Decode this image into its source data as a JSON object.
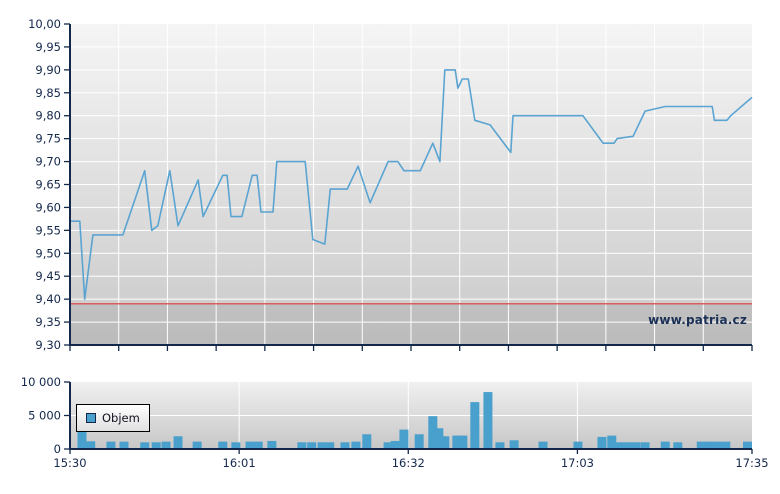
{
  "watermark": {
    "text": "www.patria.cz"
  },
  "legend": {
    "label": "Objem"
  },
  "colors": {
    "axis_navy": "#14284b",
    "price_line": "#5aa4d2",
    "volume_bar": "#4aa0cc",
    "reference_red": "#d95f5f",
    "grid_white": "#ffffff",
    "plot_bg_top": "#f5f5f5",
    "plot_bg_bottom": "#c9c9c9"
  },
  "chart_data": [
    {
      "type": "line",
      "title": "",
      "xlabel": "",
      "ylabel": "",
      "x_unit": "minutes since 15:30",
      "xlim": [
        0,
        125
      ],
      "ylim": [
        9.3,
        10.0
      ],
      "grid": true,
      "minor_x_divisions": 14,
      "yticks": [
        {
          "value": 9.3,
          "label": "9,30"
        },
        {
          "value": 9.35,
          "label": "9,35"
        },
        {
          "value": 9.4,
          "label": "9,40"
        },
        {
          "value": 9.45,
          "label": "9,45"
        },
        {
          "value": 9.5,
          "label": "9,50"
        },
        {
          "value": 9.55,
          "label": "9,55"
        },
        {
          "value": 9.6,
          "label": "9,60"
        },
        {
          "value": 9.65,
          "label": "9,65"
        },
        {
          "value": 9.7,
          "label": "9,70"
        },
        {
          "value": 9.75,
          "label": "9,75"
        },
        {
          "value": 9.8,
          "label": "9,80"
        },
        {
          "value": 9.85,
          "label": "9,85"
        },
        {
          "value": 9.9,
          "label": "9,90"
        },
        {
          "value": 9.95,
          "label": "9,95"
        },
        {
          "value": 10.0,
          "label": "10,00"
        }
      ],
      "xticks": [
        {
          "minute": 0,
          "label": "15:30"
        },
        {
          "minute": 31,
          "label": "16:01"
        },
        {
          "minute": 62,
          "label": "16:32"
        },
        {
          "minute": 93,
          "label": "17:03"
        },
        {
          "minute": 125,
          "label": "17:35"
        }
      ],
      "reference_line": {
        "value": 9.39
      },
      "series": [
        {
          "name": "price",
          "points": [
            [
              0,
              9.57
            ],
            [
              1.8,
              9.57
            ],
            [
              2.7,
              9.4
            ],
            [
              4.2,
              9.54
            ],
            [
              9.7,
              9.54
            ],
            [
              13.7,
              9.68
            ],
            [
              15.0,
              9.55
            ],
            [
              16.1,
              9.56
            ],
            [
              18.3,
              9.68
            ],
            [
              19.8,
              9.56
            ],
            [
              23.5,
              9.66
            ],
            [
              24.4,
              9.58
            ],
            [
              28.0,
              9.67
            ],
            [
              28.8,
              9.67
            ],
            [
              29.5,
              9.58
            ],
            [
              31.5,
              9.58
            ],
            [
              33.4,
              9.67
            ],
            [
              34.3,
              9.67
            ],
            [
              35.0,
              9.59
            ],
            [
              37.2,
              9.59
            ],
            [
              37.9,
              9.7
            ],
            [
              43.1,
              9.7
            ],
            [
              44.5,
              9.53
            ],
            [
              46.7,
              9.52
            ],
            [
              47.7,
              9.64
            ],
            [
              50.8,
              9.64
            ],
            [
              52.8,
              9.69
            ],
            [
              55.0,
              9.61
            ],
            [
              58.3,
              9.7
            ],
            [
              60.1,
              9.7
            ],
            [
              61.2,
              9.68
            ],
            [
              64.2,
              9.68
            ],
            [
              66.5,
              9.74
            ],
            [
              67.8,
              9.7
            ],
            [
              68.7,
              9.9
            ],
            [
              70.6,
              9.9
            ],
            [
              71.1,
              9.86
            ],
            [
              71.9,
              9.88
            ],
            [
              73.0,
              9.88
            ],
            [
              74.2,
              9.79
            ],
            [
              77.0,
              9.78
            ],
            [
              80.8,
              9.72
            ],
            [
              81.2,
              9.8
            ],
            [
              94.0,
              9.8
            ],
            [
              97.7,
              9.74
            ],
            [
              99.7,
              9.74
            ],
            [
              100.3,
              9.75
            ],
            [
              103.2,
              9.755
            ],
            [
              105.4,
              9.81
            ],
            [
              109.1,
              9.82
            ],
            [
              117.7,
              9.82
            ],
            [
              118.1,
              9.79
            ],
            [
              120.4,
              9.79
            ],
            [
              121.1,
              9.8
            ],
            [
              125,
              9.84
            ]
          ]
        }
      ]
    },
    {
      "type": "bar",
      "title": "",
      "xlabel": "",
      "ylabel": "",
      "x_unit": "minutes since 15:30",
      "xlim": [
        0,
        125
      ],
      "ylim": [
        0,
        10000
      ],
      "grid": true,
      "legend_label": "Objem",
      "yticks": [
        {
          "value": 0,
          "label": "0"
        },
        {
          "value": 5000,
          "label": "5 000"
        },
        {
          "value": 10000,
          "label": "10 000"
        }
      ],
      "xticks": [
        {
          "minute": 0,
          "label": "15:30"
        },
        {
          "minute": 31,
          "label": "16:01"
        },
        {
          "minute": 62,
          "label": "16:32"
        },
        {
          "minute": 93,
          "label": "17:03"
        },
        {
          "minute": 125,
          "label": "17:35"
        }
      ],
      "series": [
        {
          "name": "Objem",
          "points": [
            [
              2.2,
              2900
            ],
            [
              3.8,
              1150
            ],
            [
              7.5,
              1100
            ],
            [
              9.9,
              1100
            ],
            [
              13.7,
              1000
            ],
            [
              15.8,
              1000
            ],
            [
              17.6,
              1100
            ],
            [
              19.8,
              1900
            ],
            [
              23.3,
              1100
            ],
            [
              28.0,
              1100
            ],
            [
              30.4,
              1000
            ],
            [
              33.0,
              1100
            ],
            [
              34.5,
              1100
            ],
            [
              37.0,
              1200
            ],
            [
              42.5,
              1000
            ],
            [
              44.3,
              1000
            ],
            [
              46.2,
              1000
            ],
            [
              47.6,
              1000
            ],
            [
              50.4,
              1000
            ],
            [
              52.4,
              1100
            ],
            [
              54.4,
              2200
            ],
            [
              58.3,
              1000
            ],
            [
              59.6,
              1200
            ],
            [
              61.2,
              2900
            ],
            [
              64.0,
              2200
            ],
            [
              66.5,
              4900
            ],
            [
              67.6,
              3100
            ],
            [
              68.7,
              1900
            ],
            [
              70.9,
              2000
            ],
            [
              72.0,
              2000
            ],
            [
              74.2,
              7000
            ],
            [
              76.6,
              8500
            ],
            [
              78.8,
              1000
            ],
            [
              81.4,
              1300
            ],
            [
              86.7,
              1100
            ],
            [
              93.1,
              1100
            ],
            [
              97.5,
              1800
            ],
            [
              99.3,
              2000
            ],
            [
              100.8,
              1000
            ],
            [
              102.3,
              1000
            ],
            [
              103.7,
              1000
            ],
            [
              105.4,
              1000
            ],
            [
              109.1,
              1100
            ],
            [
              111.4,
              1000
            ],
            [
              115.7,
              1100
            ],
            [
              117.1,
              1100
            ],
            [
              118.6,
              1100
            ],
            [
              120.2,
              1100
            ],
            [
              124.5,
              1100
            ]
          ]
        }
      ]
    }
  ]
}
